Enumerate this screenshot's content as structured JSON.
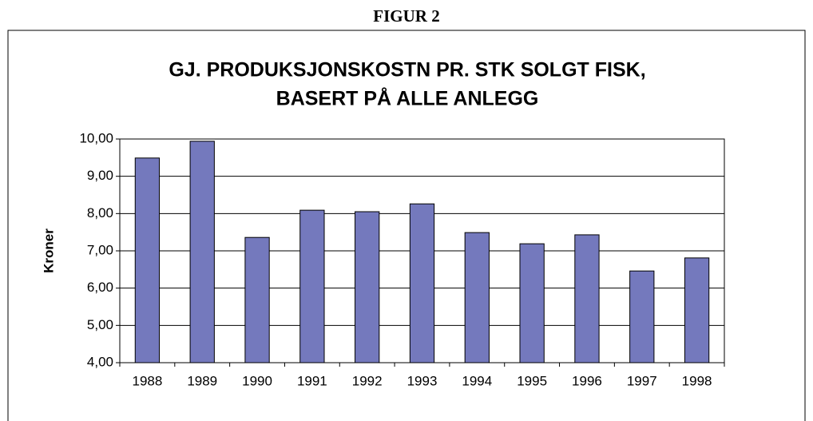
{
  "header": {
    "title": "FIGUR 2"
  },
  "chart_data": {
    "type": "bar",
    "title": [
      "GJ. PRODUKSJONSKOSTN PR. STK SOLGT FISK,",
      "BASERT PÅ ALLE ANLEGG"
    ],
    "y_label": "Kroner",
    "categories": [
      "1988",
      "1989",
      "1990",
      "1991",
      "1992",
      "1993",
      "1994",
      "1995",
      "1996",
      "1997",
      "1998"
    ],
    "values": [
      9.49,
      9.94,
      7.36,
      8.09,
      8.05,
      8.26,
      7.49,
      7.19,
      7.43,
      6.46,
      6.81
    ],
    "color": "#7479bd",
    "ylim": [
      4,
      10
    ],
    "yticks": [
      {
        "value": 4,
        "label": "4,00"
      },
      {
        "value": 5,
        "label": "5,00"
      },
      {
        "value": 6,
        "label": "6,00"
      },
      {
        "value": 7,
        "label": "7,00"
      },
      {
        "value": 8,
        "label": "8,00"
      },
      {
        "value": 9,
        "label": "9,00"
      },
      {
        "value": 10,
        "label": "10,00"
      }
    ],
    "grid": true
  }
}
